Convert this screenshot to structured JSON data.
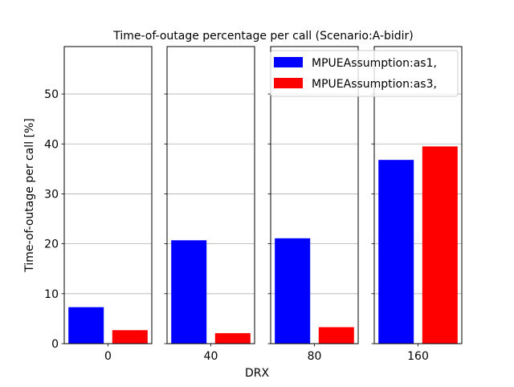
{
  "chart_data": {
    "type": "bar",
    "title": "Time-of-outage percentage per call (Scenario:A-bidir)",
    "xlabel": "DRX",
    "ylabel": "Time-of-outage per call [%]",
    "ylim": [
      0,
      59.5
    ],
    "yticks": [
      0,
      10,
      20,
      30,
      40,
      50
    ],
    "grid": "y",
    "legend_position": "top-right",
    "categories": [
      "0",
      "40",
      "80",
      "160"
    ],
    "series": [
      {
        "name": "MPUEAssumption:as1,",
        "color": "#0000ff",
        "values": [
          7.3,
          20.7,
          21.1,
          36.8
        ]
      },
      {
        "name": "MPUEAssumption:as3,",
        "color": "#ff0000",
        "values": [
          2.7,
          2.1,
          3.3,
          39.5
        ]
      }
    ]
  }
}
